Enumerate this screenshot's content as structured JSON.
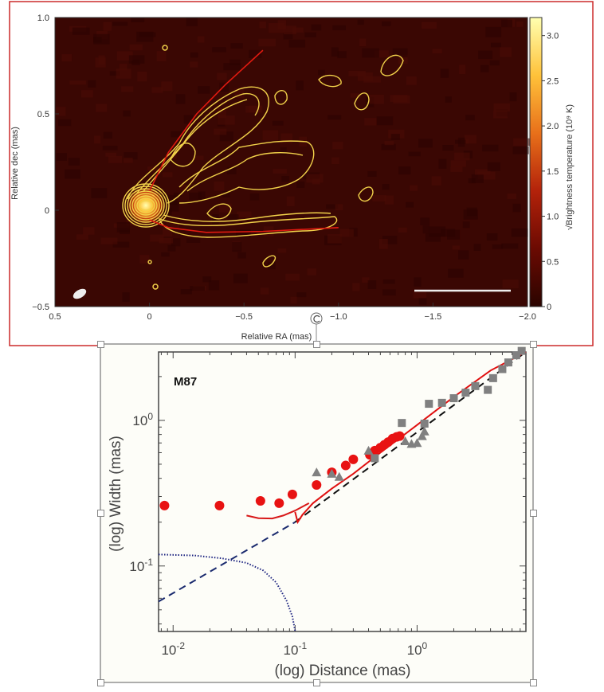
{
  "colors": {
    "frame_border": "#cc2a2a",
    "map_background": "#3a0703",
    "contour": "#f2d24a",
    "ridge_line": "#e01a10",
    "plot_background": "#fdfdf8",
    "red_points": "#e81212",
    "gray_points": "#808080",
    "dashed_fit_left": "#1a2a6e",
    "dashed_fit_right": "#111111",
    "dotted_curve": "#1c2380"
  },
  "chart_data": [
    {
      "type": "heatmap",
      "xlabel": "Relative RA (mas)",
      "ylabel": "Relative dec (mas)",
      "xlim": [
        0.5,
        -2.0
      ],
      "ylim": [
        -0.5,
        1.0
      ],
      "x_ticks": [
        "0.5",
        "0",
        "−0.5",
        "−1.0",
        "−1.5",
        "−2.0"
      ],
      "y_ticks": [
        "1.0",
        "0.5",
        "0",
        "−0.5"
      ],
      "colorbar": {
        "label": "√Brightness temperature (10⁹ K)",
        "range": [
          0,
          3.2
        ],
        "ticks": [
          "0",
          "0.5",
          "1.0",
          "1.5",
          "2.0",
          "2.5",
          "3.0"
        ],
        "colormap": [
          "#2a0400",
          "#6b0a02",
          "#b3220a",
          "#e8701a",
          "#ffc23a",
          "#ffffb0"
        ]
      },
      "ridge_lines": [
        {
          "points": [
            [
              0.0,
              0.1
            ],
            [
              -0.1,
              0.3
            ],
            [
              -0.25,
              0.5
            ],
            [
              -0.4,
              0.65
            ],
            [
              -0.6,
              0.83
            ]
          ]
        },
        {
          "points": [
            [
              0.0,
              -0.05
            ],
            [
              -0.1,
              -0.09
            ],
            [
              -0.3,
              -0.115
            ],
            [
              -0.6,
              -0.11
            ],
            [
              -1.0,
              -0.09
            ]
          ]
        }
      ],
      "grid": false
    },
    {
      "type": "scatter",
      "annotation": "M87",
      "xlabel": "(log) Distance (mas)",
      "ylabel": "(log) Width (mas)",
      "xscale": "log",
      "yscale": "log",
      "xlim": [
        0.0076,
        7.8
      ],
      "ylim": [
        0.0355,
        2.95
      ],
      "x_ticks": [
        {
          "base": "10",
          "exp": "-2",
          "value": 0.01
        },
        {
          "base": "10",
          "exp": "-1",
          "value": 0.1
        },
        {
          "base": "10",
          "exp": "0",
          "value": 1
        }
      ],
      "y_ticks": [
        {
          "base": "10",
          "exp": "-1",
          "value": 0.1
        },
        {
          "base": "10",
          "exp": "0",
          "value": 1
        }
      ],
      "grid": false,
      "series": [
        {
          "marker": "circle",
          "color": "#e81212",
          "points": [
            [
              0.0085,
              0.26
            ],
            [
              0.024,
              0.26
            ],
            [
              0.052,
              0.28
            ],
            [
              0.074,
              0.27
            ],
            [
              0.095,
              0.31
            ],
            [
              0.15,
              0.36
            ],
            [
              0.2,
              0.44
            ],
            [
              0.26,
              0.49
            ],
            [
              0.3,
              0.54
            ],
            [
              0.41,
              0.58
            ],
            [
              0.45,
              0.62
            ],
            [
              0.5,
              0.65
            ],
            [
              0.54,
              0.68
            ],
            [
              0.58,
              0.71
            ],
            [
              0.63,
              0.75
            ],
            [
              0.68,
              0.77
            ],
            [
              0.72,
              0.78
            ]
          ]
        },
        {
          "marker": "triangle",
          "color": "#808080",
          "points": [
            [
              0.15,
              0.44
            ],
            [
              0.2,
              0.43
            ],
            [
              0.23,
              0.41
            ],
            [
              0.4,
              0.62
            ],
            [
              0.8,
              0.72
            ],
            [
              0.9,
              0.69
            ],
            [
              1.0,
              0.7
            ],
            [
              1.1,
              0.78
            ],
            [
              1.15,
              0.84
            ]
          ]
        },
        {
          "marker": "square",
          "color": "#808080",
          "points": [
            [
              0.45,
              0.55
            ],
            [
              0.75,
              0.96
            ],
            [
              1.15,
              0.95
            ],
            [
              1.25,
              1.3
            ],
            [
              1.6,
              1.32
            ],
            [
              2.0,
              1.42
            ],
            [
              2.5,
              1.55
            ],
            [
              3.0,
              1.72
            ],
            [
              3.8,
              1.62
            ],
            [
              4.2,
              1.95
            ],
            [
              5.0,
              2.25
            ],
            [
              5.6,
              2.5
            ],
            [
              6.5,
              2.8
            ],
            [
              7.2,
              3.0
            ]
          ]
        },
        {
          "line": "dashed",
          "color_left": "#1a2a6e",
          "color_right": "#111111",
          "points": [
            [
              0.0076,
              0.057
            ],
            [
              0.1,
              0.2
            ],
            [
              7.8,
              2.95
            ]
          ]
        },
        {
          "line": "dotted",
          "color": "#1c2380",
          "points": [
            [
              0.0076,
              0.12
            ],
            [
              0.015,
              0.118
            ],
            [
              0.025,
              0.113
            ],
            [
              0.04,
              0.105
            ],
            [
              0.055,
              0.093
            ],
            [
              0.07,
              0.077
            ],
            [
              0.085,
              0.058
            ],
            [
              0.095,
              0.045
            ],
            [
              0.1,
              0.036
            ]
          ]
        },
        {
          "line": "solid",
          "color": "#d81818",
          "points": [
            [
              0.04,
              0.222
            ],
            [
              0.05,
              0.213
            ],
            [
              0.065,
              0.212
            ],
            [
              0.08,
              0.222
            ],
            [
              0.1,
              0.24
            ],
            [
              0.13,
              0.27
            ]
          ]
        },
        {
          "line": "solid",
          "color": "#e01010",
          "points": [
            [
              0.1,
              0.235
            ],
            [
              0.105,
              0.2
            ],
            [
              0.115,
              0.225
            ],
            [
              0.14,
              0.27
            ],
            [
              0.2,
              0.34
            ],
            [
              0.3,
              0.43
            ],
            [
              0.5,
              0.6
            ],
            [
              1.0,
              0.93
            ],
            [
              2.0,
              1.45
            ],
            [
              4.0,
              2.2
            ],
            [
              7.8,
              2.95
            ]
          ]
        }
      ]
    }
  ]
}
